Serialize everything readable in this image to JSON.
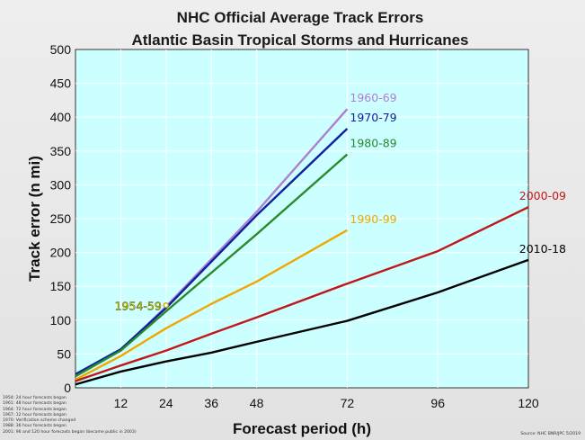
{
  "chart_data": {
    "type": "line",
    "title": "NHC Official Average Track Errors",
    "subtitle": "Atlantic Basin Tropical Storms and Hurricanes",
    "xlabel": "Forecast period (h)",
    "ylabel": "Track error (n mi)",
    "xlim": [
      0,
      120
    ],
    "ylim": [
      0,
      500
    ],
    "xticks": [
      12,
      24,
      36,
      48,
      72,
      96,
      120
    ],
    "yticks": [
      0,
      50,
      100,
      150,
      200,
      250,
      300,
      350,
      400,
      450,
      500
    ],
    "grid": true,
    "plot_background": "#ccffff",
    "series": [
      {
        "name": "1960-69",
        "color": "#b07fd0",
        "x": [
          0,
          12,
          24,
          48,
          72
        ],
        "y": [
          20,
          55,
          120,
          260,
          412
        ]
      },
      {
        "name": "1970-79",
        "color": "#1020a0",
        "x": [
          0,
          12,
          24,
          48,
          72
        ],
        "y": [
          20,
          57,
          118,
          255,
          383
        ]
      },
      {
        "name": "1980-89",
        "color": "#2a8a2a",
        "x": [
          0,
          12,
          24,
          48,
          72
        ],
        "y": [
          17,
          55,
          113,
          227,
          345
        ]
      },
      {
        "name": "1990-99",
        "color": "#f0a800",
        "x": [
          0,
          12,
          24,
          36,
          48,
          72
        ],
        "y": [
          12,
          47,
          88,
          124,
          157,
          233
        ]
      },
      {
        "name": "2000-09",
        "color": "#c01818",
        "x": [
          0,
          12,
          24,
          36,
          48,
          72,
          96,
          120
        ],
        "y": [
          10,
          33,
          55,
          80,
          104,
          154,
          202,
          267
        ]
      },
      {
        "name": "2010-18",
        "color": "#000000",
        "x": [
          0,
          12,
          24,
          36,
          48,
          72,
          96,
          120
        ],
        "y": [
          5,
          24,
          39,
          52,
          68,
          99,
          141,
          189
        ]
      }
    ],
    "point": {
      "name": "1954-59",
      "x": 24,
      "y": 122,
      "color": "#f0e000"
    }
  },
  "notes": [
    "1954: 24 hour forecasts began",
    "1961: 48 hour forecasts began",
    "1964: 72 hour forecasts began",
    "1967: 12 hour forecasts began",
    "1970: Verification scheme changed",
    "1988: 36 hour forecasts began",
    "2001: 96 and 120 hour forecasts began (became public in 2003)"
  ],
  "source": "Source: NHC BNR/JPC 5/2019"
}
